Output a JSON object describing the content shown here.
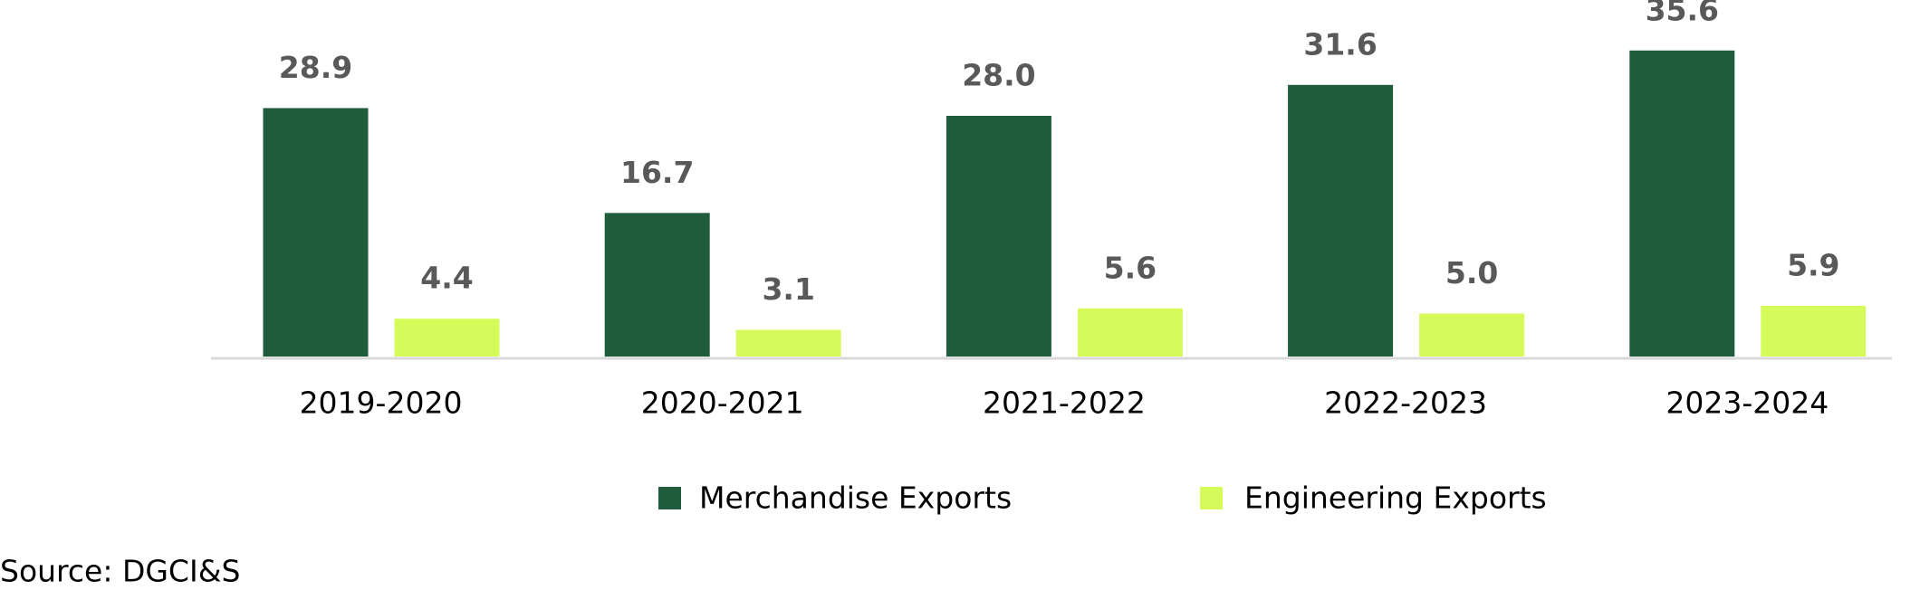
{
  "chart_data": {
    "type": "bar",
    "categories": [
      "2019-2020",
      "2020-2021",
      "2021-2022",
      "2022-2023",
      "2023-2024"
    ],
    "series": [
      {
        "name": "Merchandise Exports",
        "color": "#1e5c3b",
        "values": [
          28.9,
          16.7,
          28.0,
          31.6,
          35.6
        ],
        "value_labels": [
          "28.9",
          "16.7",
          "28.0",
          "31.6",
          "35.6"
        ]
      },
      {
        "name": "Engineering Exports",
        "color": "#d4fb5a",
        "values": [
          4.4,
          3.1,
          5.6,
          5.0,
          5.9
        ],
        "value_labels": [
          "4.4",
          "3.1",
          "5.6",
          "5.0",
          "5.9"
        ]
      }
    ],
    "legend": "bottom",
    "source": "Source: DGCI&S"
  }
}
